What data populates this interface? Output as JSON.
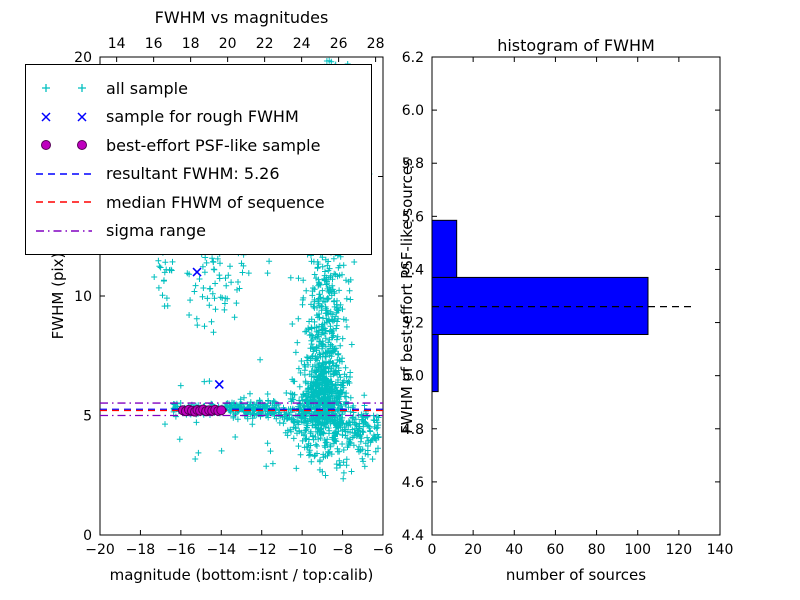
{
  "figure": {
    "background": "#ffffff"
  },
  "legend": {
    "items": [
      {
        "label": "all sample",
        "handle": "marker-plus",
        "color": "#00bfbf"
      },
      {
        "label": "sample for rough FWHM",
        "handle": "marker-x",
        "color": "#0000ff"
      },
      {
        "label": "best-effort PSF-like sample",
        "handle": "marker-circle",
        "color": "#bf00bf",
        "edge": "#550055"
      },
      {
        "label": "resultant FWHM: 5.26",
        "handle": "line-dashed",
        "color": "#0000ff"
      },
      {
        "label": "median FHWM of sequence",
        "handle": "line-dashed",
        "color": "#ff0000"
      },
      {
        "label": "sigma range",
        "handle": "line-dashdot",
        "color": "#8000c0"
      }
    ]
  },
  "chart_data": [
    {
      "type": "scatter",
      "title": "FWHM vs magnitudes",
      "xlabel": "magnitude (bottom:isnt / top:calib)",
      "ylabel": "FWHM (pix)",
      "xlim": [
        -20,
        -6
      ],
      "ylim": [
        0,
        20
      ],
      "x_ticks": [
        -20,
        -18,
        -16,
        -14,
        -12,
        -10,
        -8,
        -6
      ],
      "y_ticks": [
        0,
        5,
        10,
        15,
        20
      ],
      "top_axis": {
        "lim": [
          13.1,
          28.4
        ],
        "ticks": [
          14,
          16,
          18,
          20,
          22,
          24,
          26,
          28
        ]
      },
      "legend_position": "upper left",
      "series": [
        {
          "name": "all sample",
          "marker": "plus",
          "color": "#00bfbf",
          "clusters": [
            {
              "kind": "gauss",
              "n": 500,
              "cx": -8.9,
              "cy": 5.8,
              "sx": 0.55,
              "sy": 0.9
            },
            {
              "kind": "gauss",
              "n": 280,
              "cx": -8.9,
              "cy": 8.5,
              "sx": 0.5,
              "sy": 1.6
            },
            {
              "kind": "gauss",
              "n": 150,
              "cx": -8.8,
              "cy": 13.0,
              "sx": 0.6,
              "sy": 2.4
            },
            {
              "kind": "gauss",
              "n": 80,
              "cx": -8.8,
              "cy": 18.3,
              "sx": 0.6,
              "sy": 1.5
            },
            {
              "kind": "gauss",
              "n": 90,
              "cx": -14.3,
              "cy": 11.3,
              "sx": 0.9,
              "sy": 1.2
            },
            {
              "kind": "gauss",
              "n": 20,
              "cx": -16.9,
              "cy": 11.2,
              "sx": 0.25,
              "sy": 0.9
            },
            {
              "kind": "band",
              "n": 170,
              "x0": -16.4,
              "x1": -11.2,
              "cy": 5.25,
              "sy": 0.12
            },
            {
              "kind": "band",
              "n": 90,
              "x0": -13.5,
              "x1": -11.2,
              "cy": 5.3,
              "sy": 0.25
            },
            {
              "kind": "band",
              "n": 300,
              "x0": -11.2,
              "x1": -6.2,
              "cy": 5.1,
              "cy2": 4.4,
              "sy": 0.45
            },
            {
              "kind": "band",
              "n": 70,
              "x0": -10.3,
              "x1": -6.4,
              "cy": 3.7,
              "cy2": 3.3,
              "sy": 0.55
            },
            {
              "kind": "uniform",
              "n": 45,
              "x0": -17.3,
              "x1": -6.3,
              "y0": 2.0,
              "y1": 19.7
            }
          ]
        },
        {
          "name": "sample for rough FWHM",
          "marker": "x",
          "color": "#0000ff",
          "points": [
            [
              -15.2,
              11.0
            ],
            [
              -14.1,
              6.3
            ]
          ]
        },
        {
          "name": "best-effort PSF-like sample",
          "marker": "circle",
          "color": "#bf00bf",
          "edge_color": "#550055",
          "points": [
            [
              -15.9,
              5.22
            ],
            [
              -15.75,
              5.18
            ],
            [
              -15.6,
              5.24
            ],
            [
              -15.45,
              5.2
            ],
            [
              -15.3,
              5.16
            ],
            [
              -15.18,
              5.23
            ],
            [
              -15.05,
              5.2
            ],
            [
              -14.9,
              5.25
            ],
            [
              -14.75,
              5.18
            ],
            [
              -14.6,
              5.22
            ],
            [
              -14.45,
              5.2
            ],
            [
              -14.3,
              5.24
            ],
            [
              -14.15,
              5.19
            ],
            [
              -14.0,
              5.22
            ]
          ]
        }
      ],
      "lines": [
        {
          "name": "resultant FWHM",
          "value": 5.26,
          "style": "dashed",
          "color": "#0000ff"
        },
        {
          "name": "median FHWM of sequence",
          "value": 5.21,
          "style": "dashed",
          "color": "#ff0000"
        },
        {
          "name": "sigma range",
          "values": [
            5.0,
            5.52
          ],
          "style": "dashdot",
          "color": "#8000c0"
        }
      ]
    },
    {
      "type": "bar",
      "orientation": "horizontal",
      "title": "histogram of FWHM",
      "xlabel": "number of sources",
      "ylabel": "FWHM of best-effort PSF-like sources",
      "xlim": [
        0,
        140
      ],
      "ylim": [
        4.4,
        6.2
      ],
      "x_ticks": [
        0,
        20,
        40,
        60,
        80,
        100,
        120,
        140
      ],
      "y_tick_labels": [
        "4.4",
        "4.6",
        "4.8",
        "5.0",
        "5.2",
        "5.4",
        "5.6",
        "5.8",
        "6.0",
        "6.2"
      ],
      "bar_color": "#0000ff",
      "bar_edge_color": "#000000",
      "bins": [
        {
          "from": 4.94,
          "to": 5.155,
          "count": 3
        },
        {
          "from": 5.155,
          "to": 5.37,
          "count": 105
        },
        {
          "from": 5.37,
          "to": 5.585,
          "count": 12
        }
      ],
      "marker_line": {
        "value": 5.26,
        "x_start": 0,
        "x_end": 127,
        "style": "dashed",
        "color": "#000000"
      }
    }
  ]
}
